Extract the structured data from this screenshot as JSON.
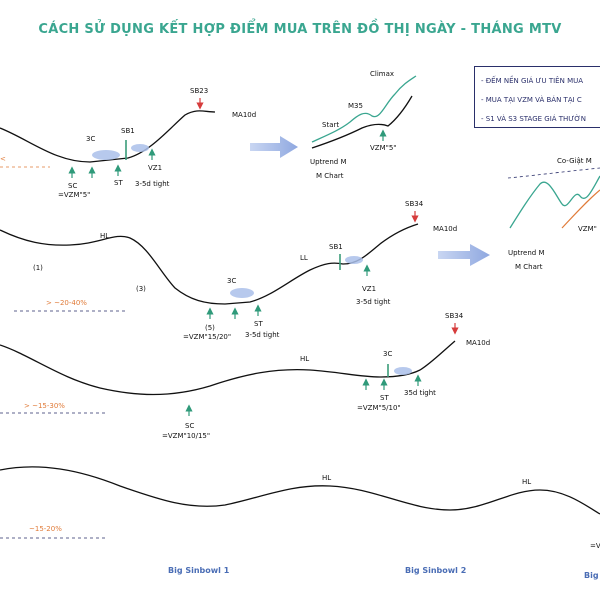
{
  "title": "CÁCH SỬ DỤNG KẾT HỢP ĐIỂM MUA TRÊN ĐỒ THỊ NGÀY - THÁNG MTV",
  "legend": [
    "- ĐẾM NỀN GIÁ ƯU TIÊN MUA",
    "- MUA TẠI VZM VÀ BÁN TẠI C",
    "- S1 VÀ S3 STAGE GIÁ THƯỜN"
  ],
  "row1": {
    "sb": "SB23",
    "ma": "MA10d",
    "c3": "3C",
    "sb1": "SB1",
    "sc": "SC",
    "sc_note": "=VZM\"5\"",
    "st": "ST",
    "vz1": "VZ1",
    "tight": "3-5d tight",
    "pct": "<"
  },
  "inset1": {
    "climax": "Climax",
    "m35": "M35",
    "start": "Start",
    "vzm": "VZM\"5\"",
    "uptrend": "Uptrend M",
    "mchart": "M Chart"
  },
  "inset2": {
    "cogiat": "Co-Giật M",
    "vzm": "VZM\"",
    "uptrend": "Uptrend M",
    "mchart": "M Chart"
  },
  "row2": {
    "sb": "SB34",
    "ma": "MA10d",
    "hl": "HL",
    "ll": "LL",
    "sb1": "SB1",
    "n1": "(1)",
    "n3": "(3)",
    "n5": "(5)",
    "c3": "3C",
    "vzm": "=VZM\"15/20\"",
    "st": "ST",
    "tight1": "3-5d tight",
    "vz1": "VZ1",
    "tight2": "3-5d tight",
    "pct": "> ~20-40%"
  },
  "row3": {
    "sb": "SB34",
    "ma": "MA10d",
    "hl": "HL",
    "c3": "3C",
    "st": "ST",
    "st_note": "=VZM\"5/10\"",
    "tight": "35d tight",
    "sc": "SC",
    "sc_note": "=VZM\"10/15\"",
    "pct": "> ~15-30%"
  },
  "row4": {
    "hl1": "HL",
    "hl2": "HL",
    "pct": "~15-20%",
    "vzm": "=V"
  },
  "bottom": {
    "label1": "Big Sinbowl 1",
    "label2": "Big Sinbowl 2",
    "label3": "Big"
  },
  "colors": {
    "title": "#3aa690",
    "curve": "#111111",
    "green_arrow": "#2f9a7a",
    "red_arrow": "#d63c3c",
    "orange": "#e07b39",
    "blue_label": "#4a6db5",
    "legend_border": "#2a2f6a",
    "highlight": "#aac0ea",
    "base_line": "#3a9c7a"
  }
}
